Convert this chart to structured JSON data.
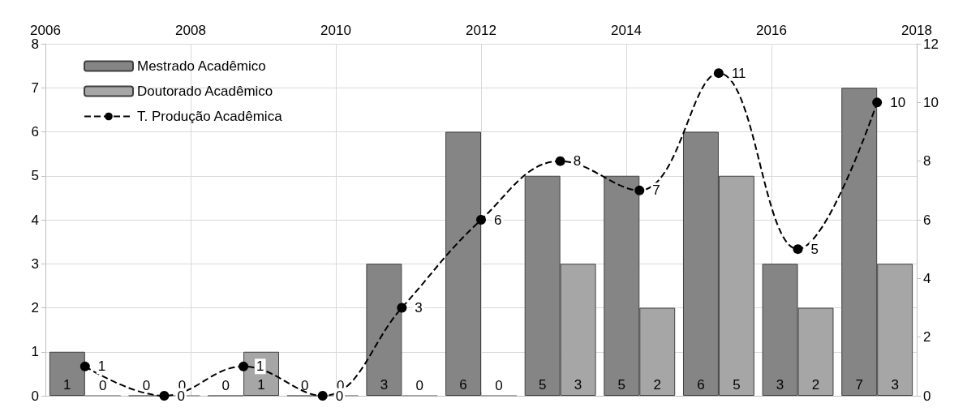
{
  "chart_data": {
    "type": "bar",
    "categories": [
      null,
      null,
      null,
      null,
      null,
      null,
      null,
      null,
      null,
      null,
      null
    ],
    "series": [
      {
        "name": "Mestrado Acadêmico",
        "color": "#858585",
        "values": [
          1,
          0,
          0,
          0,
          3,
          6,
          5,
          5,
          6,
          3,
          7
        ]
      },
      {
        "name": "Doutorado Acadêmico",
        "color": "#a6a6a6",
        "values": [
          0,
          0,
          1,
          0,
          0,
          0,
          3,
          2,
          5,
          2,
          3
        ]
      },
      {
        "name": "T. Produção Acadêmica",
        "type": "line",
        "axis": "y2",
        "color": "#000000",
        "values": [
          1,
          0,
          1,
          0,
          3,
          6,
          8,
          7,
          11,
          5,
          10
        ]
      }
    ],
    "ylim": [
      0,
      8
    ],
    "yticks": [
      0,
      1,
      2,
      3,
      4,
      5,
      6,
      7,
      8
    ],
    "y2lim": [
      0,
      12
    ],
    "y2ticks": [
      0,
      2,
      4,
      6,
      8,
      10,
      12
    ],
    "x2lim": [
      2006,
      2018
    ],
    "x2ticks": [
      2006,
      2008,
      2010,
      2012,
      2014,
      2016,
      2018
    ],
    "grid": true,
    "legend": "top left",
    "data_labels": true,
    "marker": "circle",
    "line_style": "dashed"
  }
}
